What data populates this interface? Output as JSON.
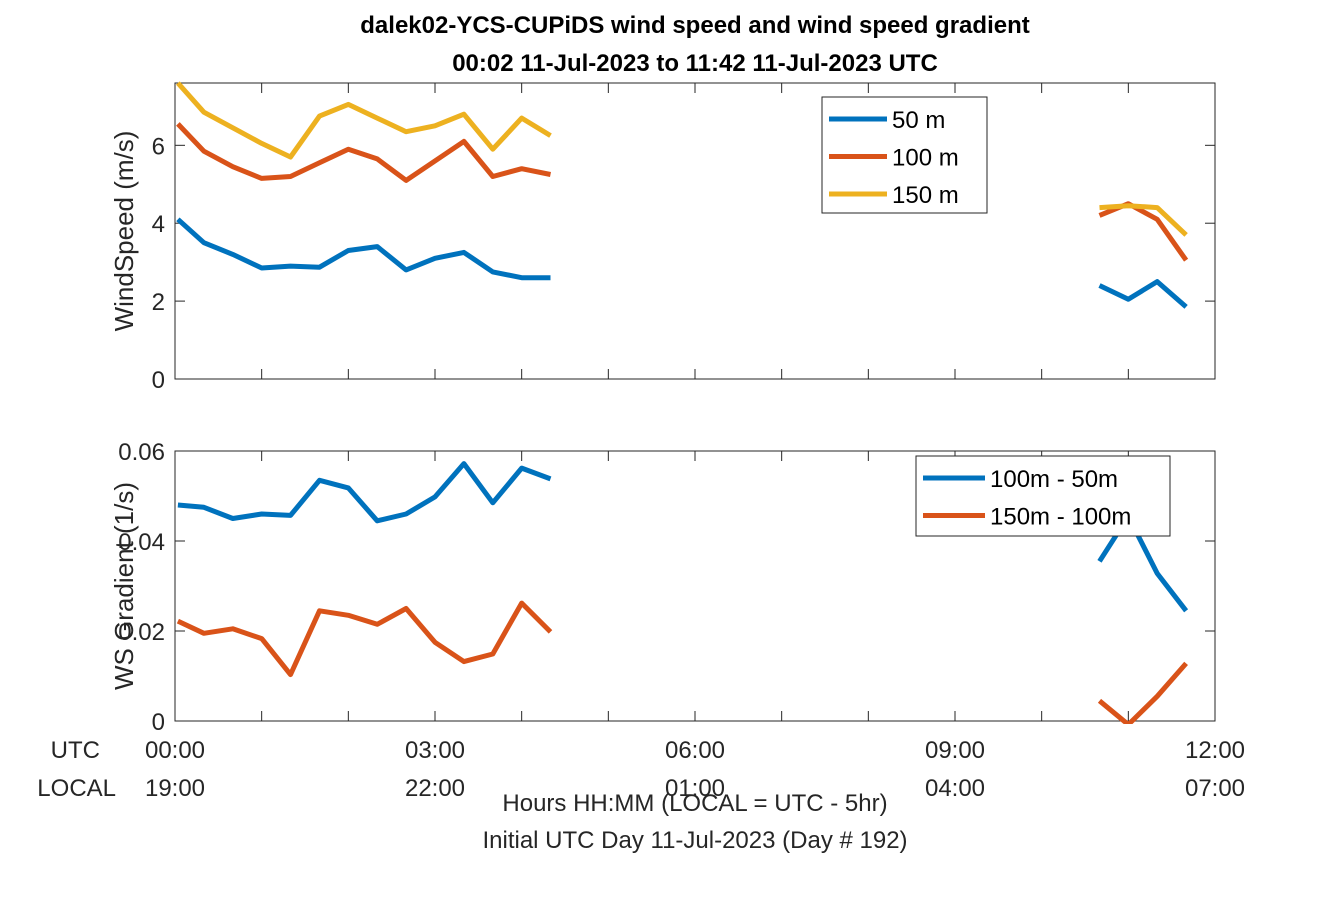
{
  "figure": {
    "title_line1": "dalek02-YCS-CUPiDS  wind speed and wind speed gradient",
    "title_line2": "00:02 11-Jul-2023 to 11:42 11-Jul-2023  UTC",
    "utc_label": "UTC",
    "local_label": "LOCAL",
    "xlabel": "Hours HH:MM  (LOCAL = UTC - 5hr)",
    "footer": "Initial UTC Day 11-Jul-2023 (Day # 192)",
    "x_ticks_utc": [
      "00:00",
      "03:00",
      "06:00",
      "09:00",
      "12:00"
    ],
    "x_ticks_local": [
      "19:00",
      "22:00",
      "01:00",
      "04:00",
      "07:00"
    ],
    "colors": {
      "c1": "#0072BD",
      "c2": "#D95319",
      "c3": "#EDB120"
    }
  },
  "chart_data": [
    {
      "type": "line",
      "ylabel": "WindSpeed (m/s)",
      "xlim": [
        0,
        12
      ],
      "ylim": [
        0,
        7.6
      ],
      "y_ticks": [
        0,
        2,
        4,
        6
      ],
      "y_tick_labels": [
        "0",
        "2",
        "4",
        "6"
      ],
      "legend_position": "top-right",
      "series": [
        {
          "name": "50 m",
          "color": "#0072BD",
          "x": [
            0.033,
            0.333,
            0.667,
            1.0,
            1.333,
            1.667,
            2.0,
            2.333,
            2.667,
            3.0,
            3.333,
            3.667,
            4.0,
            4.333,
            null,
            10.667,
            11.0,
            11.333,
            11.667
          ],
          "y": [
            4.1,
            3.5,
            3.2,
            2.85,
            2.9,
            2.87,
            3.3,
            3.4,
            2.8,
            3.1,
            3.25,
            2.75,
            2.6,
            2.6,
            null,
            2.4,
            2.05,
            2.5,
            1.85
          ]
        },
        {
          "name": "100 m",
          "color": "#D95319",
          "x": [
            0.033,
            0.333,
            0.667,
            1.0,
            1.333,
            1.667,
            2.0,
            2.333,
            2.667,
            3.0,
            3.333,
            3.667,
            4.0,
            4.333,
            null,
            10.667,
            11.0,
            11.333,
            11.667
          ],
          "y": [
            6.55,
            5.85,
            5.45,
            5.15,
            5.2,
            5.55,
            5.9,
            5.65,
            5.1,
            5.6,
            6.1,
            5.2,
            5.4,
            5.25,
            null,
            4.2,
            4.5,
            4.1,
            3.05
          ]
        },
        {
          "name": "150 m",
          "color": "#EDB120",
          "x": [
            0.033,
            0.333,
            0.667,
            1.0,
            1.333,
            1.667,
            2.0,
            2.333,
            2.667,
            3.0,
            3.333,
            3.667,
            4.0,
            4.333,
            null,
            10.667,
            11.0,
            11.333,
            11.667
          ],
          "y": [
            7.6,
            6.85,
            6.45,
            6.05,
            5.7,
            6.75,
            7.05,
            6.7,
            6.35,
            6.5,
            6.8,
            5.9,
            6.7,
            6.25,
            null,
            4.4,
            4.45,
            4.4,
            3.7
          ]
        }
      ]
    },
    {
      "type": "line",
      "ylabel": "WS Gradient (1/s)",
      "xlim": [
        0,
        12
      ],
      "ylim": [
        0,
        0.06
      ],
      "y_ticks": [
        0,
        0.02,
        0.04,
        0.06
      ],
      "y_tick_labels": [
        "0",
        "0.02",
        "0.04",
        "0.06"
      ],
      "legend_position": "top-right",
      "series": [
        {
          "name": "100m - 50m",
          "color": "#0072BD",
          "x": [
            0.033,
            0.333,
            0.667,
            1.0,
            1.333,
            1.667,
            2.0,
            2.333,
            2.667,
            3.0,
            3.333,
            3.667,
            4.0,
            4.333,
            null,
            10.667,
            11.0,
            11.333,
            11.667
          ],
          "y": [
            0.048,
            0.0475,
            0.045,
            0.046,
            0.0457,
            0.0535,
            0.0518,
            0.0445,
            0.046,
            0.0498,
            0.0572,
            0.0485,
            0.0562,
            0.0538,
            null,
            0.0355,
            0.0455,
            0.0328,
            0.0245
          ]
        },
        {
          "name": "150m - 100m",
          "color": "#D95319",
          "x": [
            0.033,
            0.333,
            0.667,
            1.0,
            1.333,
            1.667,
            2.0,
            2.333,
            2.667,
            3.0,
            3.333,
            3.667,
            4.0,
            4.333,
            null,
            10.667,
            11.0,
            11.333,
            11.667
          ],
          "y": [
            0.0222,
            0.0195,
            0.0205,
            0.0183,
            0.0103,
            0.0245,
            0.0235,
            0.0215,
            0.025,
            0.0175,
            0.0132,
            0.0149,
            0.0262,
            0.0198,
            null,
            0.0045,
            -0.0008,
            0.0055,
            0.0128
          ]
        }
      ]
    }
  ]
}
